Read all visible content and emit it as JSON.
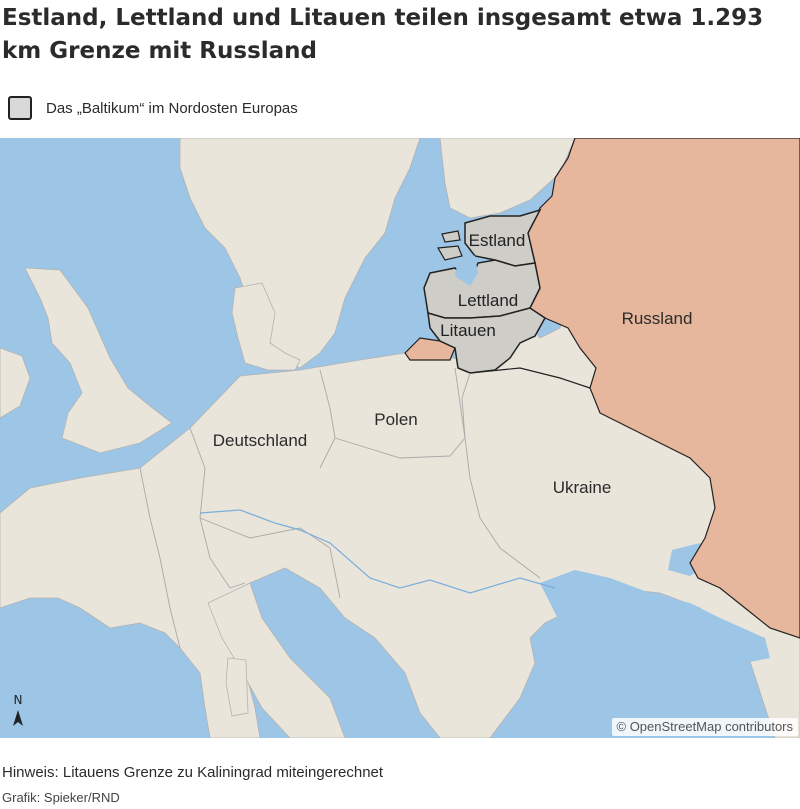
{
  "header": {
    "title": "Estland, Lettland und Litauen teilen insgesamt etwa 1.293 km Grenze mit Russland"
  },
  "legend": {
    "label": "Das „Baltikum“ im Nordosten Europas",
    "swatch_color": "#d9d9d9"
  },
  "map": {
    "colors": {
      "water": "#9cc5e6",
      "land": "#e9e5da",
      "russia": "#e6b79d",
      "baltic": "#cfcdc7",
      "border": "#a9a9a9"
    },
    "labels": {
      "estland": "Estland",
      "lettland": "Lettland",
      "litauen": "Litauen",
      "russland": "Russland",
      "polen": "Polen",
      "deutschland": "Deutschland",
      "ukraine": "Ukraine"
    },
    "north_arrow": "N",
    "attribution": "© OpenStreetMap contributors"
  },
  "footer": {
    "note": "Hinweis: Litauens Grenze zu Kaliningrad miteingerechnet",
    "credit": "Grafik: Spieker/RND"
  }
}
